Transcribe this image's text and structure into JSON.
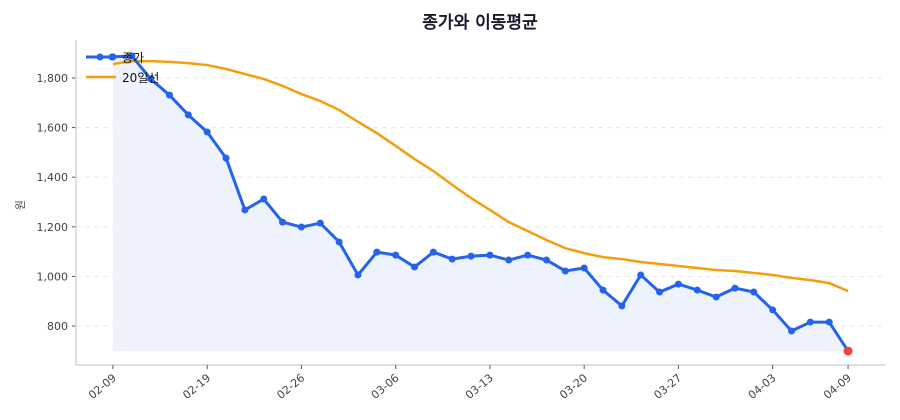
{
  "chart_data": {
    "type": "line",
    "title": "종가와 이동평균",
    "xlabel": "",
    "ylabel": "원",
    "ylim": [
      643,
      1953
    ],
    "xlim_index": [
      -1.96,
      40.96
    ],
    "yticks": [
      800,
      1000,
      1200,
      1400,
      1600,
      1800
    ],
    "ytick_labels": [
      "800",
      "1,000",
      "1,200",
      "1,400",
      "1,600",
      "1,800"
    ],
    "xtick_labels": [
      "02-09",
      "02-19",
      "02-26",
      "03-06",
      "03-13",
      "03-20",
      "03-27",
      "04-03",
      "04-09"
    ],
    "grid": "horizontal dashed",
    "legend": "top-left",
    "dates": [
      "02-09",
      "02-10",
      "02-11",
      "02-12",
      "02-13",
      "02-19",
      "02-20",
      "02-23",
      "02-24",
      "02-25",
      "02-26",
      "02-27",
      "03-03",
      "03-04",
      "03-05",
      "03-06",
      "03-09",
      "03-10",
      "03-11",
      "03-12",
      "03-13",
      "03-16",
      "03-17",
      "03-18",
      "03-19",
      "03-20",
      "03-23",
      "03-24",
      "03-25",
      "03-26",
      "03-27",
      "03-30",
      "03-31",
      "04-01",
      "04-02",
      "04-03",
      "04-06",
      "04-07",
      "04-08",
      "04-09"
    ],
    "series": [
      {
        "name": "종가",
        "color": "#2563eb",
        "fill": "#eef2fc",
        "values": [
          1885,
          1889,
          1796,
          1731,
          1651,
          1582,
          1477,
          1268,
          1312,
          1219,
          1199,
          1215,
          1139,
          1006,
          1098,
          1086,
          1038,
          1098,
          1070,
          1082,
          1086,
          1066,
          1086,
          1066,
          1022,
          1034,
          945,
          881,
          1006,
          937,
          969,
          945,
          917,
          953,
          937,
          865,
          780,
          816,
          816,
          699
        ]
      },
      {
        "name": "20일선",
        "color": "#f59e0b",
        "values": [
          1856,
          1868,
          1868,
          1865,
          1860,
          1852,
          1836,
          1816,
          1796,
          1768,
          1735,
          1707,
          1671,
          1623,
          1578,
          1526,
          1473,
          1425,
          1369,
          1316,
          1268,
          1219,
          1183,
          1147,
          1114,
          1094,
          1078,
          1070,
          1058,
          1050,
          1042,
          1034,
          1026,
          1022,
          1014,
          1006,
          994,
          985,
          973,
          941
        ]
      }
    ],
    "last_point_color": "#ef4444"
  }
}
